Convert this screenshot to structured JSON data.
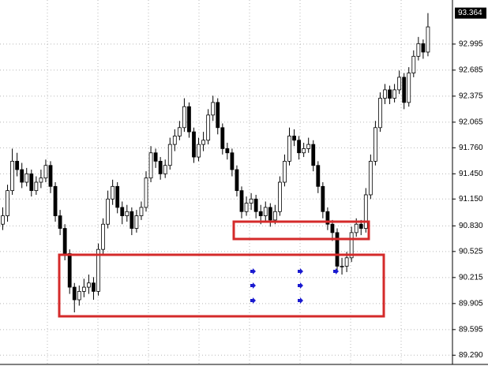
{
  "chart_data": {
    "type": "candlestick",
    "ylim": [
      89.18,
      93.52
    ],
    "yticks": [
      92.995,
      92.685,
      92.375,
      92.065,
      {
        "value": 91.76,
        "label": "91.760"
      },
      {
        "value": 91.45,
        "label": "91.450"
      },
      {
        "value": 91.15,
        "label": "91.150"
      },
      {
        "value": 90.83,
        "label": "90.830"
      },
      90.525,
      90.215,
      89.905,
      89.595,
      {
        "value": 89.29,
        "label": "89.290"
      }
    ],
    "grid": true,
    "current_price": 93.364,
    "up_color": "#ffffff",
    "down_color": "#000000",
    "wick_color": "#000000",
    "open": [
      90.85,
      90.95,
      91.25,
      91.6,
      91.5,
      91.35,
      91.45,
      91.25,
      91.35,
      91.4,
      91.55,
      91.3,
      90.95,
      90.8,
      90.5,
      90.1,
      89.95,
      90.05,
      90.1,
      90.15,
      90.05,
      90.55,
      90.85,
      91.15,
      91.3,
      91.05,
      90.95,
      91.0,
      90.8,
      90.95,
      91.05,
      91.4,
      91.7,
      91.6,
      91.45,
      91.55,
      91.8,
      91.9,
      92.0,
      92.25,
      91.95,
      91.65,
      91.8,
      91.85,
      92.15,
      92.3,
      92.0,
      91.75,
      91.7,
      91.5,
      91.25,
      91.0,
      91.1,
      91.15,
      91.0,
      90.95,
      91.05,
      90.9,
      91.0,
      91.35,
      91.6,
      91.9,
      91.85,
      91.7,
      91.75,
      91.8,
      91.55,
      91.3,
      91.0,
      90.85,
      90.75,
      90.35,
      90.35,
      90.45,
      90.75,
      90.85,
      90.8,
      91.2,
      91.6,
      92.0,
      92.35,
      92.45,
      92.35,
      92.45,
      92.6,
      92.3,
      92.65,
      92.85,
      93.0,
      92.9
    ],
    "high": [
      91.05,
      91.32,
      91.75,
      91.7,
      91.58,
      91.52,
      91.5,
      91.42,
      91.5,
      91.62,
      91.6,
      91.35,
      91.02,
      90.85,
      90.55,
      90.15,
      90.12,
      90.2,
      90.25,
      90.22,
      90.62,
      90.92,
      91.25,
      91.38,
      91.35,
      91.12,
      91.08,
      91.05,
      91.02,
      91.12,
      91.48,
      91.78,
      91.75,
      91.65,
      91.62,
      91.88,
      91.98,
      92.08,
      92.35,
      92.3,
      92.0,
      91.88,
      91.95,
      92.22,
      92.38,
      92.35,
      92.05,
      91.82,
      91.75,
      91.55,
      91.3,
      91.18,
      91.22,
      91.2,
      91.08,
      91.12,
      91.1,
      91.08,
      91.42,
      91.68,
      92.0,
      91.98,
      91.9,
      91.82,
      91.88,
      91.85,
      91.6,
      91.35,
      91.05,
      90.9,
      90.8,
      90.45,
      90.52,
      90.82,
      90.92,
      90.9,
      91.28,
      91.68,
      92.08,
      92.42,
      92.52,
      92.5,
      92.52,
      92.68,
      92.65,
      92.72,
      92.92,
      93.08,
      93.05,
      93.364
    ],
    "low": [
      90.78,
      90.88,
      91.2,
      91.42,
      91.28,
      91.3,
      91.18,
      91.2,
      91.28,
      91.35,
      91.22,
      90.88,
      90.72,
      90.42,
      90.02,
      89.8,
      89.88,
      89.98,
      90.02,
      89.95,
      90.0,
      90.5,
      90.8,
      91.08,
      90.98,
      90.85,
      90.88,
      90.72,
      90.75,
      90.9,
      91.0,
      91.35,
      91.52,
      91.38,
      91.4,
      91.5,
      91.72,
      91.85,
      91.95,
      91.88,
      91.58,
      91.6,
      91.72,
      91.8,
      92.08,
      91.92,
      91.68,
      91.62,
      91.42,
      91.18,
      90.92,
      90.95,
      91.02,
      90.92,
      90.85,
      90.88,
      90.82,
      90.85,
      90.95,
      91.3,
      91.55,
      91.78,
      91.62,
      91.65,
      91.7,
      91.48,
      91.22,
      90.92,
      90.78,
      90.65,
      90.28,
      90.25,
      90.28,
      90.4,
      90.7,
      90.72,
      90.75,
      91.15,
      91.55,
      91.95,
      92.28,
      92.28,
      92.3,
      92.4,
      92.22,
      92.25,
      92.6,
      92.8,
      92.82,
      92.85
    ],
    "close": [
      90.95,
      91.25,
      91.6,
      91.5,
      91.35,
      91.45,
      91.25,
      91.35,
      91.4,
      91.55,
      91.3,
      90.95,
      90.8,
      90.5,
      90.1,
      89.95,
      90.05,
      90.1,
      90.15,
      90.05,
      90.55,
      90.85,
      91.15,
      91.3,
      91.05,
      90.95,
      91.0,
      90.8,
      90.95,
      91.05,
      91.4,
      91.7,
      91.6,
      91.45,
      91.55,
      91.8,
      91.9,
      92.0,
      92.25,
      91.95,
      91.65,
      91.8,
      91.85,
      92.15,
      92.3,
      92.0,
      91.75,
      91.7,
      91.5,
      91.25,
      91.0,
      91.1,
      91.15,
      91.0,
      90.95,
      91.05,
      90.9,
      91.0,
      91.35,
      91.6,
      91.9,
      91.85,
      91.7,
      91.75,
      91.8,
      91.55,
      91.3,
      91.0,
      90.85,
      90.75,
      90.35,
      90.35,
      90.45,
      90.75,
      90.85,
      90.8,
      91.2,
      91.6,
      92.0,
      92.35,
      92.45,
      92.35,
      92.45,
      92.6,
      92.3,
      92.65,
      92.85,
      93.0,
      92.9,
      93.2
    ]
  }
}
